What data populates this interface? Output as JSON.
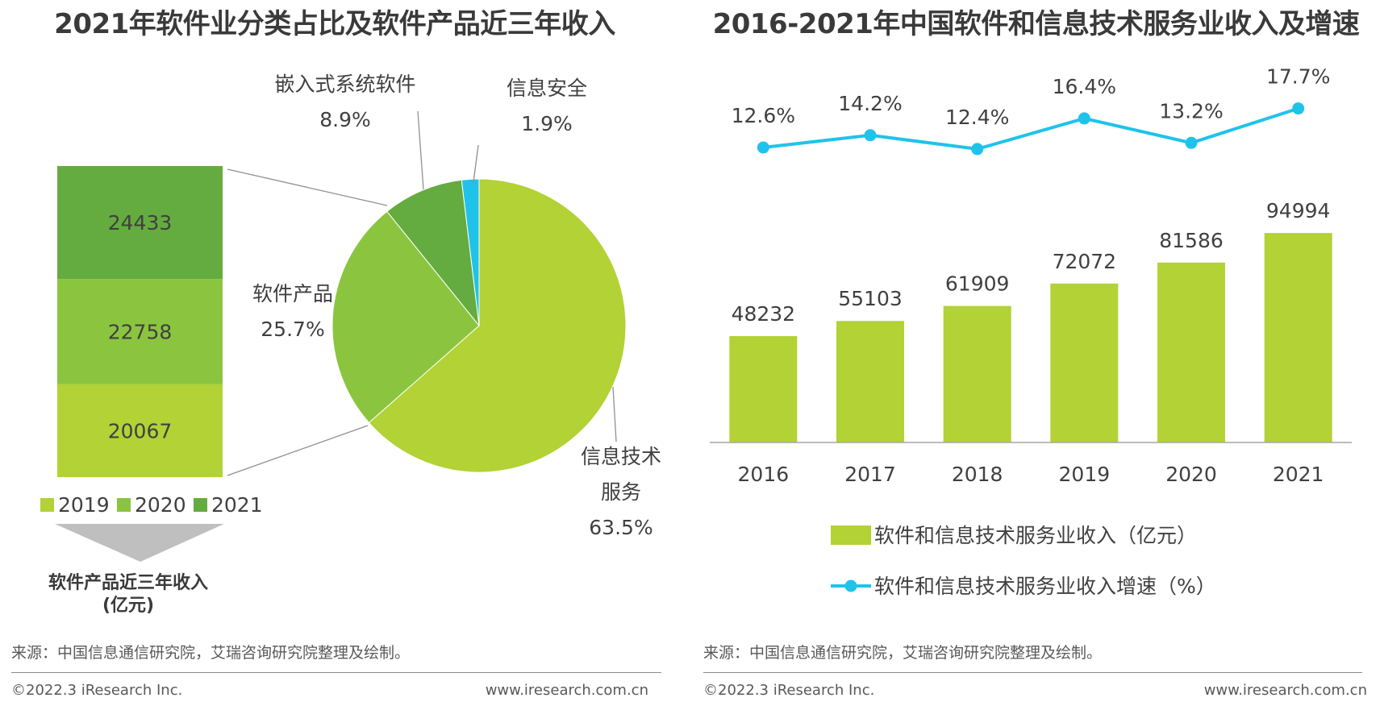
{
  "left": {
    "title": "2021年软件业分类占比及软件产品近三年收入",
    "caption_line1": "软件产品近三年收入",
    "caption_line2": "(亿元)",
    "source": "来源：中国信息通信研究院，艾瑞咨询研究院整理及绘制。",
    "copyright": "©2022.3 iResearch Inc.",
    "website": "www.iresearch.com.cn"
  },
  "right": {
    "title": "2016-2021年中国软件和信息技术服务业收入及增速",
    "source": "来源：中国信息通信研究院，艾瑞咨询研究院整理及绘制。",
    "copyright": "©2022.3 iResearch Inc.",
    "website": "www.iresearch.com.cn"
  },
  "colors": {
    "lime": "#b2d235",
    "mid_green": "#8bc540",
    "dark_green": "#64ac3f",
    "cyan": "#1fc3ea",
    "grey_arrow": "#bfbfbf"
  },
  "chart_data": [
    {
      "type": "pie",
      "slices": [
        {
          "label_lines": [
            "信息技术",
            "服务"
          ],
          "value": 63.5,
          "value_label": "63.5%",
          "color": "#b2d235"
        },
        {
          "label_lines": [
            "软件产品"
          ],
          "value": 25.7,
          "value_label": "25.7%",
          "color": "#8bc540"
        },
        {
          "label_lines": [
            "嵌入式系统软件"
          ],
          "value": 8.9,
          "value_label": "8.9%",
          "color": "#64ac3f"
        },
        {
          "label_lines": [
            "信息安全"
          ],
          "value": 1.9,
          "value_label": "1.9%",
          "color": "#1fc3ea"
        }
      ]
    },
    {
      "type": "bar",
      "stacked": true,
      "series": [
        {
          "name": "2019",
          "value": 20067,
          "color": "#b2d235"
        },
        {
          "name": "2020",
          "value": 22758,
          "color": "#8bc540"
        },
        {
          "name": "2021",
          "value": 24433,
          "color": "#64ac3f"
        }
      ],
      "legend_position": "bottom"
    },
    {
      "type": "bar",
      "categories": [
        "2016",
        "2017",
        "2018",
        "2019",
        "2020",
        "2021"
      ],
      "series": [
        {
          "name": "软件和信息技术服务业收入（亿元）",
          "values": [
            48232,
            55103,
            61909,
            72072,
            81586,
            94994
          ],
          "color": "#b2d235"
        }
      ],
      "ylim": [
        0,
        100000
      ],
      "legend_position": "bottom"
    },
    {
      "type": "line",
      "categories": [
        "2016",
        "2017",
        "2018",
        "2019",
        "2020",
        "2021"
      ],
      "series": [
        {
          "name": "软件和信息技术服务业收入增速（%）",
          "values": [
            12.6,
            14.2,
            12.4,
            16.4,
            13.2,
            17.7
          ],
          "labels": [
            "12.6%",
            "14.2%",
            "12.4%",
            "16.4%",
            "13.2%",
            "17.7%"
          ],
          "color": "#1fc3ea"
        }
      ]
    }
  ]
}
